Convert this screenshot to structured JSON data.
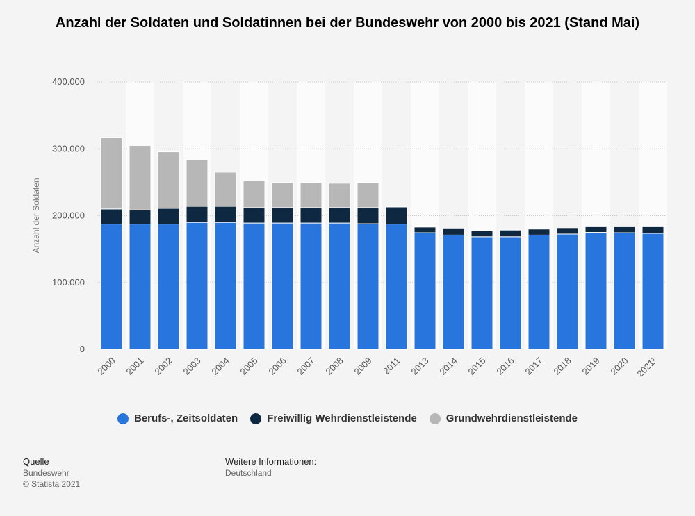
{
  "title": "Anzahl der Soldaten und Soldatinnen bei der Bundeswehr von 2000 bis 2021 (Stand Mai)",
  "footer": {
    "source_label": "Quelle",
    "source_name": "Bundeswehr",
    "copyright": "© Statista 2021",
    "info_label": "Weitere Informationen:",
    "info_value": "Deutschland"
  },
  "chart_data": {
    "type": "bar",
    "stacked": true,
    "ylabel": "Anzahl der Soldaten",
    "ylim": [
      0,
      400000
    ],
    "yticks": [
      0,
      100000,
      200000,
      300000,
      400000
    ],
    "ytick_labels": [
      "0",
      "100.000",
      "200.000",
      "300.000",
      "400.000"
    ],
    "grid": true,
    "legend_position": "bottom",
    "categories": [
      "2000",
      "2001",
      "2002",
      "2003",
      "2004",
      "2005",
      "2006",
      "2007",
      "2008",
      "2009",
      "2011",
      "2013",
      "2014",
      "2015",
      "2016",
      "2017",
      "2018",
      "2019",
      "2020",
      "2021¹"
    ],
    "series": [
      {
        "name": "Berufs-, Zeitsoldaten",
        "color": "#2876dd",
        "values": [
          187500,
          187500,
          187500,
          190000,
          190000,
          189000,
          189000,
          189000,
          189000,
          188000,
          187500,
          174500,
          171000,
          168500,
          168500,
          171000,
          172500,
          175000,
          174500,
          173500
        ]
      },
      {
        "name": "Freiwillig Wehrdienstleistende",
        "color": "#0f2842",
        "values": [
          22500,
          21000,
          23500,
          24000,
          24000,
          23000,
          23000,
          23000,
          23000,
          24000,
          25500,
          8500,
          9500,
          9000,
          10000,
          9000,
          8500,
          8500,
          9000,
          10000
        ]
      },
      {
        "name": "Grundwehrdienstleistende",
        "color": "#b7b7b7",
        "values": [
          107000,
          96500,
          84500,
          70000,
          51000,
          40000,
          37500,
          37500,
          36500,
          37500,
          0,
          0,
          0,
          0,
          0,
          0,
          0,
          0,
          0,
          0
        ]
      }
    ]
  }
}
